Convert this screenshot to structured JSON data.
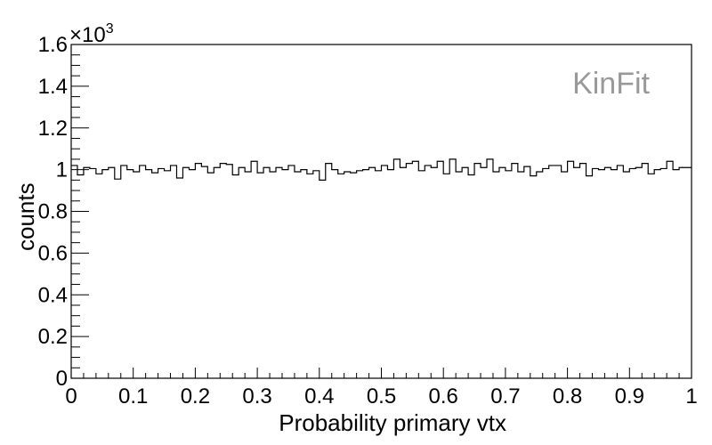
{
  "chart_data": {
    "type": "histogram",
    "xlabel": "Probability primary vtx",
    "ylabel": "counts",
    "annotation": "KinFit",
    "annotation_color": "#999999",
    "line_color": "#000000",
    "y_exponent_label": "×10",
    "y_exponent_power": "3",
    "xlim": [
      0,
      1
    ],
    "ylim": [
      0,
      1600
    ],
    "x_ticks": [
      {
        "value": 0,
        "label": "0"
      },
      {
        "value": 0.1,
        "label": "0.1"
      },
      {
        "value": 0.2,
        "label": "0.2"
      },
      {
        "value": 0.3,
        "label": "0.3"
      },
      {
        "value": 0.4,
        "label": "0.4"
      },
      {
        "value": 0.5,
        "label": "0.5"
      },
      {
        "value": 0.6,
        "label": "0.6"
      },
      {
        "value": 0.7,
        "label": "0.7"
      },
      {
        "value": 0.8,
        "label": "0.8"
      },
      {
        "value": 0.9,
        "label": "0.9"
      },
      {
        "value": 1,
        "label": "1"
      }
    ],
    "y_ticks": [
      {
        "value": 0,
        "label": "0"
      },
      {
        "value": 200,
        "label": "0.2"
      },
      {
        "value": 400,
        "label": "0.4"
      },
      {
        "value": 600,
        "label": "0.6"
      },
      {
        "value": 800,
        "label": "0.8"
      },
      {
        "value": 1000,
        "label": "1"
      },
      {
        "value": 1200,
        "label": "1.2"
      },
      {
        "value": 1400,
        "label": "1.4"
      },
      {
        "value": 1600,
        "label": "1.6"
      }
    ],
    "bins": 100,
    "values": [
      1020,
      975,
      1010,
      1005,
      980,
      1000,
      1010,
      955,
      1020,
      1000,
      990,
      1020,
      1000,
      985,
      1005,
      995,
      1020,
      960,
      1010,
      1000,
      1030,
      1015,
      985,
      1010,
      1030,
      1025,
      975,
      1010,
      990,
      1040,
      985,
      1010,
      990,
      1010,
      1000,
      1020,
      990,
      1000,
      980,
      995,
      950,
      1030,
      1000,
      980,
      990,
      985,
      995,
      1000,
      1010,
      995,
      1020,
      1000,
      1050,
      1010,
      1030,
      1040,
      995,
      1020,
      1010,
      1040,
      980,
      1050,
      990,
      1010,
      975,
      1030,
      1010,
      1050,
      990,
      1010,
      995,
      1030,
      990,
      1015,
      970,
      990,
      1005,
      1020,
      1020,
      990,
      1040,
      1010,
      1030,
      970,
      1005,
      1000,
      1010,
      1000,
      1020,
      990,
      1005,
      1010,
      1030,
      980,
      1000,
      1005,
      1040,
      1000,
      1010,
      1010
    ]
  }
}
